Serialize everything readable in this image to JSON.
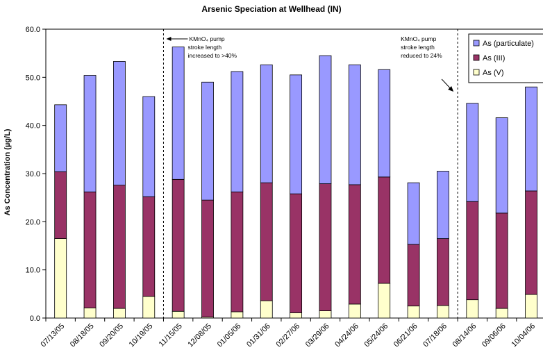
{
  "chart_data": {
    "type": "bar",
    "stacked": true,
    "title": "Arsenic Speciation at Wellhead (IN)",
    "xlabel": "",
    "ylabel": "As Concentration (µg/L)",
    "ylim": [
      0,
      60
    ],
    "yticks": [
      "0.0",
      "10.0",
      "20.0",
      "30.0",
      "40.0",
      "50.0",
      "60.0"
    ],
    "grid": false,
    "legend_position": "top-right",
    "categories": [
      "07/13/05",
      "08/18/05",
      "09/20/05",
      "10/19/05",
      "11/15/05",
      "12/08/05",
      "01/05/06",
      "01/31/06",
      "02/27/06",
      "03/29/06",
      "04/24/06",
      "05/24/06",
      "06/21/06",
      "07/18/06",
      "08/14/06",
      "09/06/06",
      "10/04/06"
    ],
    "series": [
      {
        "name": "As (V)",
        "color": "#ffffcc",
        "values": [
          16.5,
          2.1,
          2.0,
          4.5,
          1.4,
          0.2,
          1.3,
          3.6,
          1.1,
          1.5,
          2.9,
          7.2,
          2.5,
          2.6,
          3.8,
          2.0,
          4.9
        ]
      },
      {
        "name": "As (III)",
        "color": "#993366",
        "values": [
          13.9,
          24.1,
          25.6,
          20.7,
          27.4,
          24.3,
          24.9,
          24.5,
          24.7,
          26.4,
          24.8,
          22.1,
          12.8,
          13.9,
          20.4,
          19.8,
          21.5
        ]
      },
      {
        "name": "As (particulate)",
        "color": "#9999ff",
        "values": [
          13.9,
          24.2,
          25.7,
          20.8,
          27.5,
          24.5,
          25.0,
          24.5,
          24.7,
          26.6,
          24.9,
          22.3,
          12.8,
          14.0,
          20.4,
          19.8,
          21.6
        ]
      }
    ],
    "legend_order": [
      "As (particulate)",
      "As (III)",
      "As (V)"
    ],
    "dividers_after_category": [
      "10/19/05",
      "07/18/06"
    ],
    "annotations": [
      {
        "lines": [
          "KMnO₄ pump",
          "stroke length",
          "increased to >40%"
        ],
        "near_category": "11/15/05"
      },
      {
        "lines": [
          "KMnO₄ pump",
          "stroke length",
          "reduced to 24%"
        ],
        "near_category": "06/21/06"
      }
    ]
  }
}
